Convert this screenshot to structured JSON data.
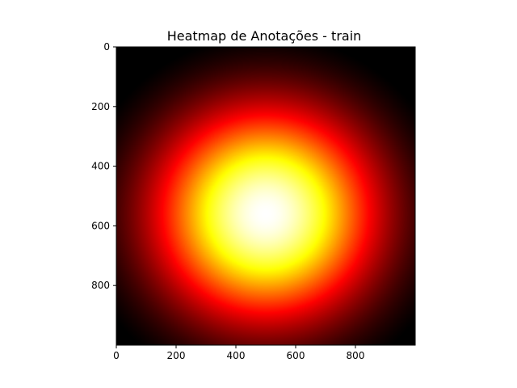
{
  "chart_data": {
    "type": "heatmap",
    "title": "Heatmap de Anotações - train",
    "xlabel": "",
    "ylabel": "",
    "colormap": "hot",
    "xlim": [
      0,
      1000
    ],
    "ylim": [
      1000,
      0
    ],
    "y_axis_inverted": true,
    "x_ticks": [
      0,
      200,
      400,
      600,
      800
    ],
    "y_ticks": [
      0,
      200,
      400,
      600,
      800
    ],
    "grid": false,
    "legend": "none",
    "peak_location": {
      "x": 500,
      "y": 560
    },
    "colors": {
      "low": "#000000",
      "mid_low": "#ff0000",
      "mid_high": "#ffff00",
      "high": "#ffffff"
    }
  }
}
